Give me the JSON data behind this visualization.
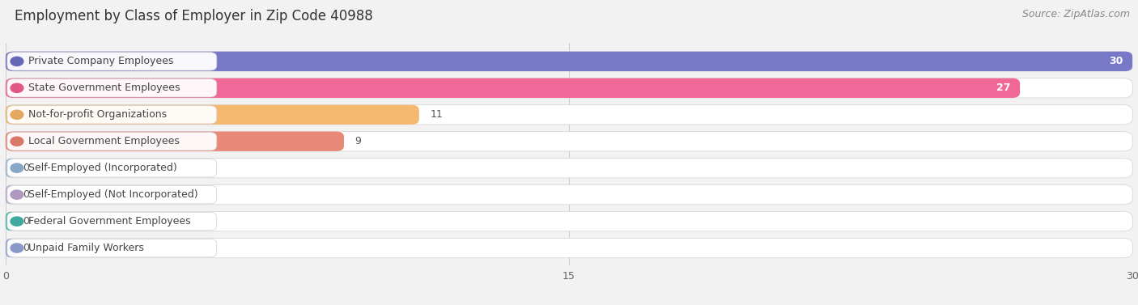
{
  "title": "Employment by Class of Employer in Zip Code 40988",
  "source": "Source: ZipAtlas.com",
  "categories": [
    "Private Company Employees",
    "State Government Employees",
    "Not-for-profit Organizations",
    "Local Government Employees",
    "Self-Employed (Incorporated)",
    "Self-Employed (Not Incorporated)",
    "Federal Government Employees",
    "Unpaid Family Workers"
  ],
  "values": [
    30,
    27,
    11,
    9,
    0,
    0,
    0,
    0
  ],
  "bar_colors": [
    "#7878c8",
    "#f06898",
    "#f5b870",
    "#e88878",
    "#98b8d8",
    "#c0a8d0",
    "#50b8b0",
    "#98a8d8"
  ],
  "dot_colors": [
    "#6868b8",
    "#e05888",
    "#e5a860",
    "#d87868",
    "#88a8c8",
    "#b098c0",
    "#40a8a0",
    "#8898c8"
  ],
  "xlim": [
    0,
    30
  ],
  "xticks": [
    0,
    15,
    30
  ],
  "background_color": "#f2f2f2",
  "title_fontsize": 12,
  "source_fontsize": 9,
  "label_fontsize": 9,
  "value_fontsize": 9
}
